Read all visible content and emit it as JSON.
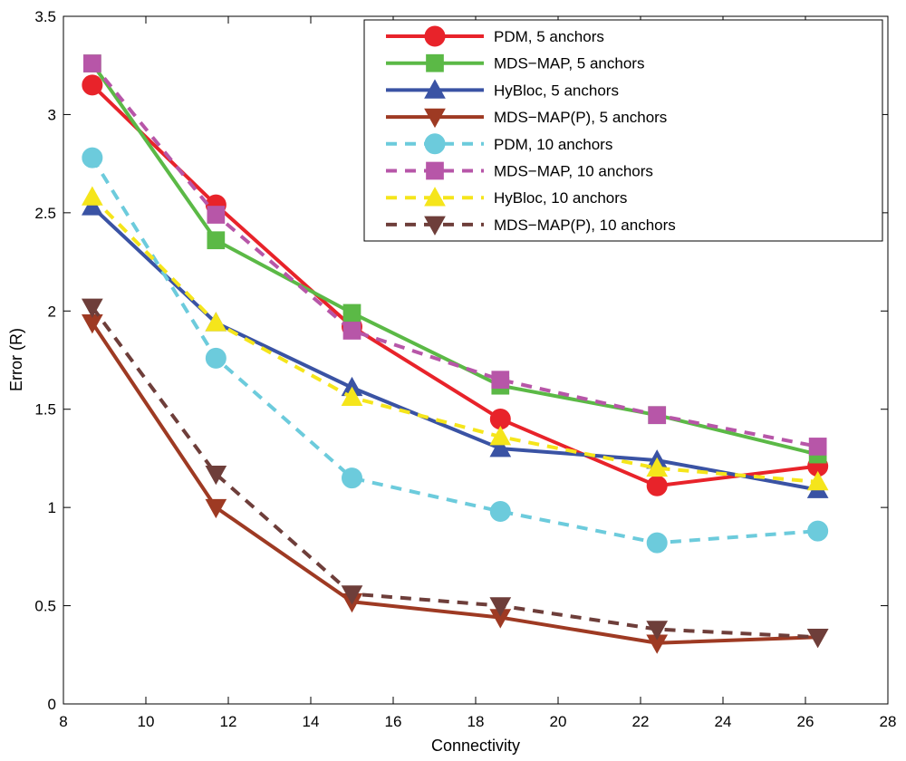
{
  "chart_data": {
    "type": "line",
    "title": "",
    "xlabel": "Connectivity",
    "ylabel": "Error (R)",
    "xlim": [
      8,
      28
    ],
    "ylim": [
      0,
      3.5
    ],
    "xticks": [
      "8",
      "10",
      "12",
      "14",
      "16",
      "18",
      "20",
      "22",
      "24",
      "26",
      "28"
    ],
    "yticks": [
      "0",
      "0.5",
      "1",
      "1.5",
      "2",
      "2.5",
      "3",
      "3.5"
    ],
    "grid": false,
    "legend_position": "top-right",
    "x": [
      8.7,
      11.7,
      15.0,
      18.6,
      22.4,
      26.3
    ],
    "series": [
      {
        "name": "PDM, 5 anchors",
        "color": "#e8232a",
        "dash": "solid",
        "marker": "circle",
        "values": [
          3.15,
          2.54,
          1.92,
          1.45,
          1.11,
          1.21
        ]
      },
      {
        "name": "MDS−MAP, 5 anchors",
        "color": "#5bb946",
        "dash": "solid",
        "marker": "square",
        "values": [
          3.26,
          2.36,
          1.99,
          1.62,
          1.47,
          1.27
        ]
      },
      {
        "name": "HyBloc, 5 anchors",
        "color": "#3a53a4",
        "dash": "solid",
        "marker": "triangle-up",
        "values": [
          2.53,
          1.94,
          1.61,
          1.3,
          1.24,
          1.09
        ]
      },
      {
        "name": "MDS−MAP(P), 5 anchors",
        "color": "#9e3a23",
        "dash": "solid",
        "marker": "triangle-down",
        "values": [
          1.94,
          1.0,
          0.52,
          0.44,
          0.31,
          0.34
        ]
      },
      {
        "name": "PDM, 10 anchors",
        "color": "#6ccbdc",
        "dash": "dashed",
        "marker": "circle",
        "values": [
          2.78,
          1.76,
          1.15,
          0.98,
          0.82,
          0.88
        ]
      },
      {
        "name": "MDS−MAP, 10 anchors",
        "color": "#b756a8",
        "dash": "dashed",
        "marker": "square",
        "values": [
          3.26,
          2.49,
          1.9,
          1.65,
          1.47,
          1.31
        ]
      },
      {
        "name": "HyBloc, 10 anchors",
        "color": "#f5e51b",
        "dash": "dashed",
        "marker": "triangle-up",
        "values": [
          2.58,
          1.94,
          1.56,
          1.36,
          1.2,
          1.13
        ]
      },
      {
        "name": "MDS−MAP(P), 10 anchors",
        "color": "#6e3e3a",
        "dash": "dashed",
        "marker": "triangle-down",
        "values": [
          2.02,
          1.17,
          0.56,
          0.5,
          0.38,
          0.34
        ]
      }
    ]
  }
}
